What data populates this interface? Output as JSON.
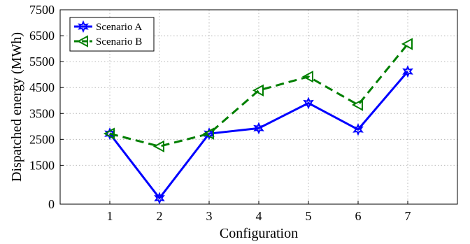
{
  "chart_data": {
    "type": "line",
    "x": [
      1,
      2,
      3,
      4,
      5,
      6,
      7
    ],
    "xlim": [
      0,
      8
    ],
    "ylim": [
      0,
      7500
    ],
    "xticks": [
      1,
      2,
      3,
      4,
      5,
      6,
      7
    ],
    "yticks": [
      0,
      1500,
      2500,
      3500,
      4500,
      5500,
      6500,
      7500
    ],
    "xlabel": "Configuration",
    "ylabel": "Dispatched energy (MWh)",
    "grid": true,
    "legend_position": "top-left",
    "series": [
      {
        "name": "Scenario A",
        "values": [
          2720,
          230,
          2720,
          2930,
          3900,
          2880,
          5120
        ],
        "color": "#0000ff",
        "line_style": "solid",
        "marker": "star"
      },
      {
        "name": "Scenario B",
        "values": [
          2720,
          2230,
          2720,
          4390,
          4920,
          3830,
          6180
        ],
        "color": "#007f00",
        "line_style": "dashed",
        "marker": "triangle-left"
      }
    ]
  }
}
